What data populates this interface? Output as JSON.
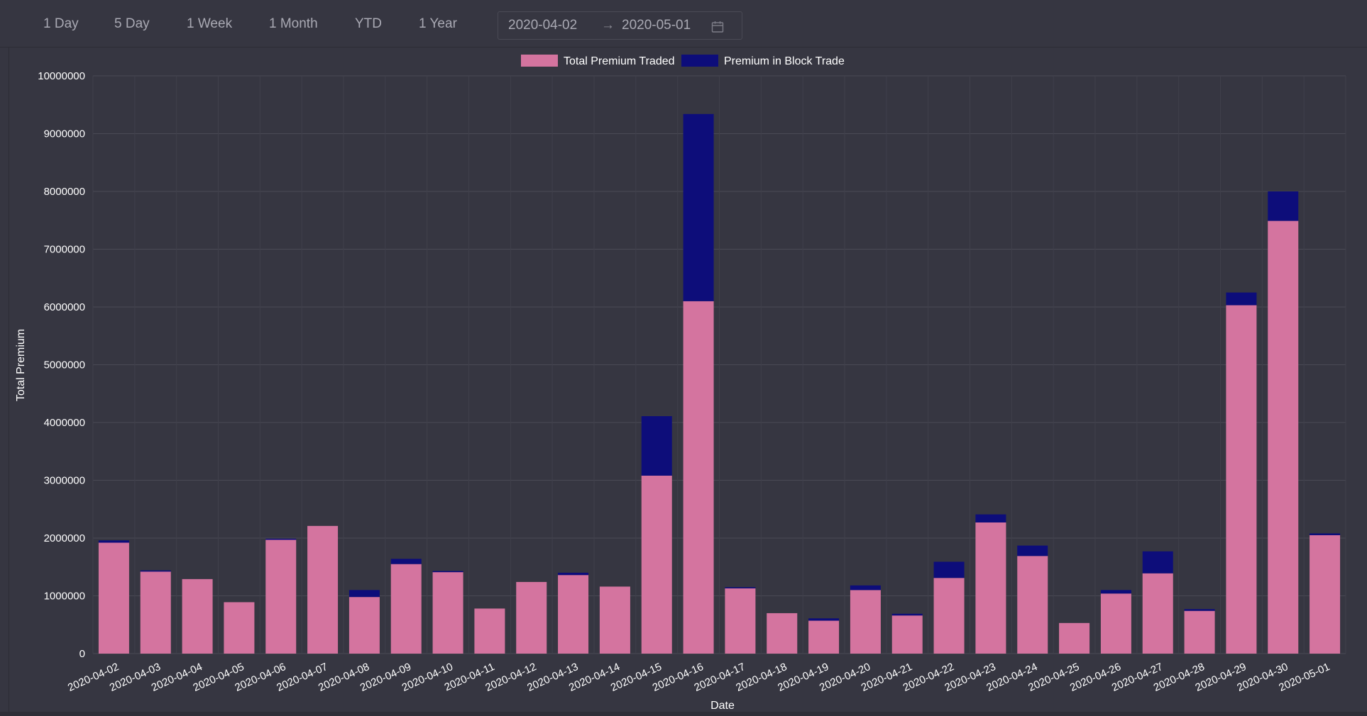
{
  "toolbar": {
    "ranges": [
      "1 Day",
      "5 Day",
      "1 Week",
      "1 Month",
      "YTD",
      "1 Year"
    ],
    "date_from": "2020-04-02",
    "date_to": "2020-05-01",
    "arrow": "→"
  },
  "chart_data": {
    "type": "bar",
    "stacked": true,
    "xlabel": "Date",
    "ylabel": "Total Premium",
    "ylim": [
      0,
      10000000
    ],
    "yticks": [
      0,
      1000000,
      2000000,
      3000000,
      4000000,
      5000000,
      6000000,
      7000000,
      8000000,
      9000000,
      10000000
    ],
    "grid": true,
    "legend_position": "top",
    "categories": [
      "2020-04-02",
      "2020-04-03",
      "2020-04-04",
      "2020-04-05",
      "2020-04-06",
      "2020-04-07",
      "2020-04-08",
      "2020-04-09",
      "2020-04-10",
      "2020-04-11",
      "2020-04-12",
      "2020-04-13",
      "2020-04-14",
      "2020-04-15",
      "2020-04-16",
      "2020-04-17",
      "2020-04-18",
      "2020-04-19",
      "2020-04-20",
      "2020-04-21",
      "2020-04-22",
      "2020-04-23",
      "2020-04-24",
      "2020-04-25",
      "2020-04-26",
      "2020-04-27",
      "2020-04-28",
      "2020-04-29",
      "2020-04-30",
      "2020-05-01"
    ],
    "series": [
      {
        "name": "Total Premium Traded",
        "color": "#d4749f",
        "values": [
          1920000,
          1420000,
          1290000,
          890000,
          1970000,
          2210000,
          980000,
          1550000,
          1410000,
          780000,
          1240000,
          1360000,
          1160000,
          3080000,
          6100000,
          1130000,
          700000,
          570000,
          1100000,
          660000,
          1310000,
          2270000,
          1690000,
          530000,
          1040000,
          1390000,
          740000,
          6030000,
          7490000,
          2050000
        ]
      },
      {
        "name": "Premium in Block Trade",
        "color": "#0d0d7a",
        "values": [
          40000,
          20000,
          0,
          0,
          20000,
          0,
          120000,
          90000,
          20000,
          0,
          0,
          40000,
          0,
          1030000,
          3240000,
          20000,
          0,
          40000,
          80000,
          30000,
          280000,
          140000,
          180000,
          0,
          60000,
          380000,
          30000,
          220000,
          510000,
          30000
        ]
      }
    ]
  }
}
